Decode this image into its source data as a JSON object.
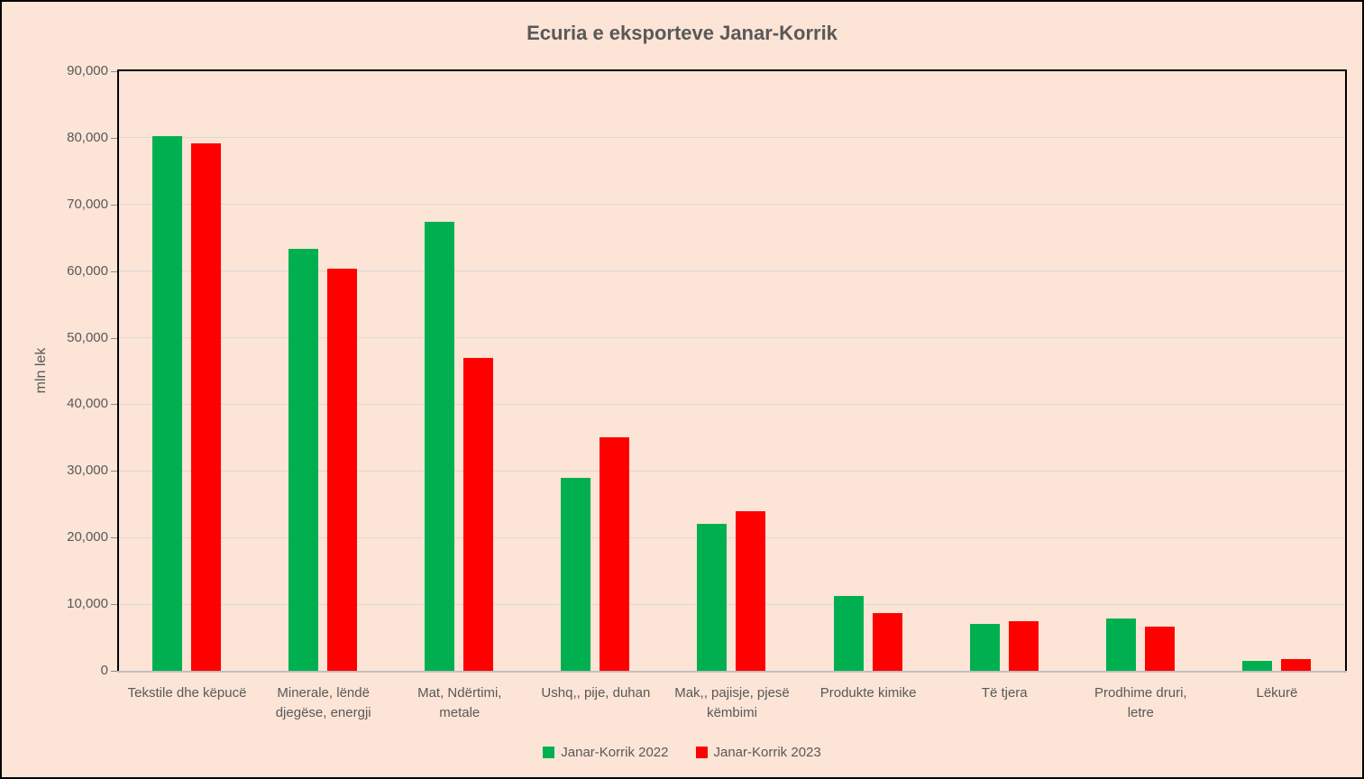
{
  "chart_data": {
    "type": "bar",
    "title": "Ecuria e eksporteve Janar-Korrik",
    "ylabel": "mln lek",
    "xlabel": "",
    "ylim": [
      0,
      90000
    ],
    "ytick_step": 10000,
    "grid": true,
    "legend_position": "bottom",
    "background_color": "#FCE4D6",
    "gridline_color": "#D9D9D9",
    "axis_text_color": "#595959",
    "categories": [
      "Tekstile dhe këpucë",
      "Minerale, lëndë\ndjegëse, energji",
      "Mat, Ndërtimi,\nmetale",
      "Ushq,, pije, duhan",
      "Mak,, pajisje, pjesë\nkëmbimi",
      "Produkte kimike",
      "Të tjera",
      "Prodhime druri,\nletre",
      "Lëkurë"
    ],
    "series": [
      {
        "name": "Janar-Korrik 2022",
        "color": "#00B050",
        "values": [
          80300,
          63300,
          67400,
          29000,
          22000,
          11300,
          7000,
          7900,
          1500
        ]
      },
      {
        "name": "Janar-Korrik 2023",
        "color": "#FF0000",
        "values": [
          79200,
          60300,
          46900,
          35100,
          23900,
          8700,
          7400,
          6600,
          1800
        ]
      }
    ]
  }
}
